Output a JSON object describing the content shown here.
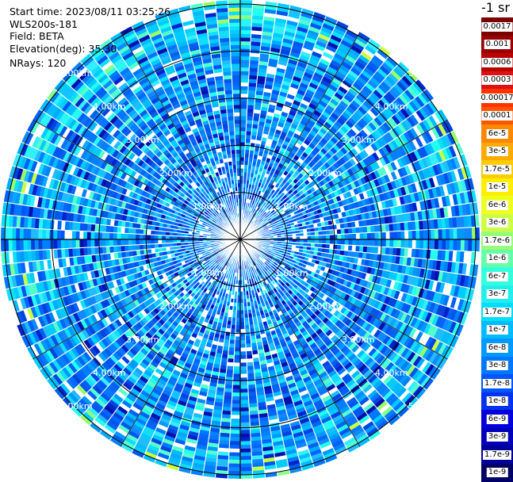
{
  "header": {
    "start_time": "Start time: 2023/08/11 03:25:26",
    "instrument": "WLS200s-181",
    "field": "Field: BETA",
    "elevation": "Elevation(deg): 35.30",
    "nrays": "NRays: 120"
  },
  "colorbar": {
    "unit_label": "-1 sr",
    "labels": [
      "0.0017",
      "0.001",
      "0.0006",
      "0.0003",
      "0.00017",
      "0.0001",
      "6e-5",
      "3e-5",
      "1.7e-5",
      "1e-5",
      "6e-6",
      "3e-6",
      "1.7e-6",
      "1e-6",
      "6e-7",
      "3e-7",
      "1.7e-7",
      "1e-7",
      "6e-8",
      "3e-8",
      "1.7e-8",
      "1e-8",
      "6e-9",
      "3e-9",
      "1.7e-9",
      "1e-9"
    ],
    "colors": [
      "#7a0000",
      "#990000",
      "#bb0000",
      "#dd1111",
      "#ff3300",
      "#ff5500",
      "#ff8800",
      "#ffaa00",
      "#ffcc00",
      "#ffee00",
      "#eeff22",
      "#ccff44",
      "#99ff77",
      "#66ffaa",
      "#33ffdd",
      "#22eeee",
      "#00ddff",
      "#00bbff",
      "#0099ff",
      "#0077ff",
      "#0055ff",
      "#0033ee",
      "#0000dd",
      "#0000bb",
      "#000099",
      "#000066"
    ]
  },
  "chart_data": {
    "type": "heatmap",
    "projection": "polar",
    "nrays": 120,
    "max_range_km": 5.0,
    "range_rings_km": [
      1.0,
      2.0,
      3.0,
      4.0,
      5.0
    ],
    "ring_labels": [
      "1.00km",
      "2.00km",
      "3.00km",
      "4.00km",
      "5.00km"
    ],
    "radial_lines_deg": [
      0,
      30,
      60,
      90,
      120,
      150,
      180,
      210,
      240,
      270,
      300,
      330
    ],
    "dominant_value_range_sr-1": [
      1e-08,
      1e-06
    ],
    "far_range_highlights": "cyan and yellow-green patches near 5 km at north and north-west"
  }
}
